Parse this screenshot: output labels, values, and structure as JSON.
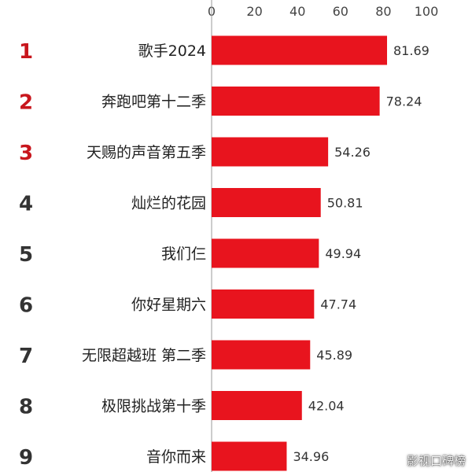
{
  "chart_data": {
    "type": "bar",
    "orientation": "horizontal",
    "title": "",
    "xlabel": "",
    "ylabel": "",
    "xlim": [
      0,
      100
    ],
    "ticks": [
      "0",
      "20",
      "40",
      "60",
      "80",
      "100"
    ],
    "grid": false,
    "bar_color": "#e8141e",
    "rank_colors": {
      "top3": "#c8161d",
      "rest": "#333333"
    },
    "categories": [
      "歌手2024",
      "奔跑吧第十二季",
      "天赐的声音第五季",
      "灿烂的花园",
      "我们仨",
      "你好星期六",
      "无限超越班 第二季",
      "极限挑战第十季",
      "音你而来"
    ],
    "ranks": [
      "1",
      "2",
      "3",
      "4",
      "5",
      "6",
      "7",
      "8",
      "9"
    ],
    "values": [
      81.69,
      78.24,
      54.26,
      50.81,
      49.94,
      47.74,
      45.89,
      42.04,
      34.96
    ],
    "value_labels": [
      "81.69",
      "78.24",
      "54.26",
      "50.81",
      "49.94",
      "47.74",
      "45.89",
      "42.04",
      "34.96"
    ]
  },
  "watermark": "影视口碑榜"
}
